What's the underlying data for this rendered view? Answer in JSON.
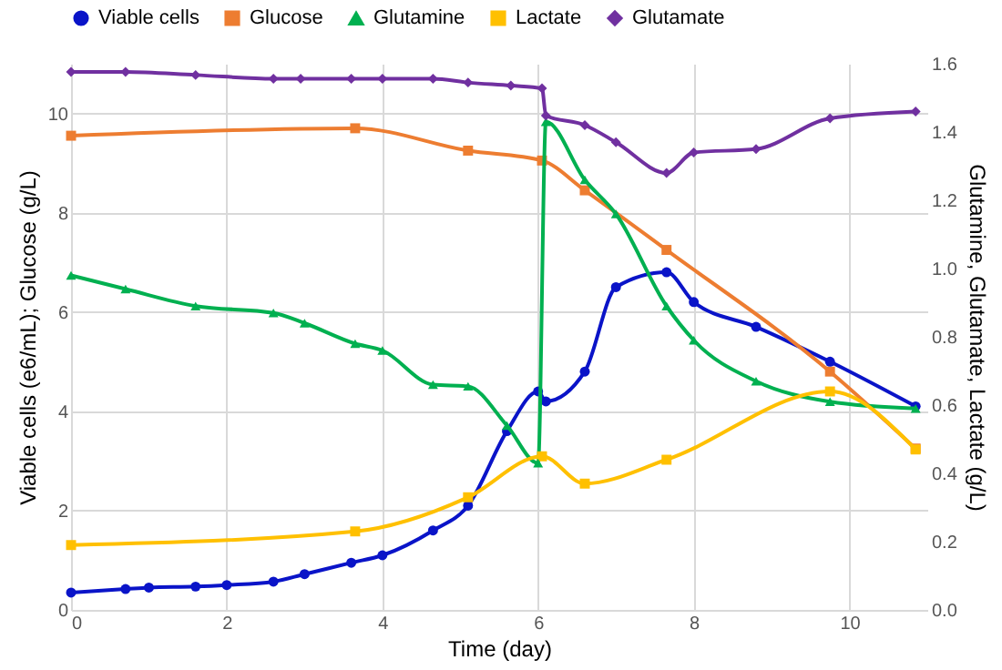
{
  "chart_data": {
    "type": "line",
    "xlabel": "Time (day)",
    "ylabel": "Viable cells (e6/mL); Glucose (g/L)",
    "y2label": "Glutamine, Glutamate, Lactate (g/L)",
    "xlim": [
      0,
      11
    ],
    "xticks": [
      0,
      2,
      4,
      6,
      8,
      10
    ],
    "ylim": [
      0,
      11
    ],
    "yticks": [
      0,
      2,
      4,
      6,
      8,
      10
    ],
    "y2lim": [
      0,
      1.6
    ],
    "y2ticks": [
      {
        "value": 0,
        "label": "0.0"
      },
      0.2,
      0.4,
      0.6,
      0.8,
      {
        "value": 1,
        "label": "1.0"
      },
      1.2,
      1.4,
      1.6
    ],
    "grid": true,
    "legend": "top",
    "series": [
      {
        "name": "Viable cells",
        "color": "#0a14c8",
        "marker": "circle",
        "x": [
          0,
          0.7,
          1.0,
          1.6,
          2.0,
          2.6,
          3.0,
          3.6,
          4.0,
          4.65,
          5.1,
          5.6,
          6.0,
          6.1,
          6.6,
          7.0,
          7.65,
          8.0,
          8.8,
          9.75,
          10.85
        ],
        "values": [
          0.35,
          0.42,
          0.45,
          0.47,
          0.5,
          0.57,
          0.72,
          0.95,
          1.1,
          1.6,
          2.1,
          3.6,
          4.4,
          4.2,
          4.8,
          6.5,
          6.8,
          6.2,
          5.7,
          5.0,
          4.1
        ]
      },
      {
        "name": "Glucose",
        "color": "#ed7d31",
        "marker": "square",
        "x": [
          0,
          3.65,
          5.1,
          6.05,
          6.6,
          7.65,
          9.75,
          10.85
        ],
        "values": [
          9.55,
          9.7,
          9.25,
          9.05,
          8.45,
          7.25,
          4.8,
          3.25
        ]
      },
      {
        "name": "Glutamine",
        "color": "#00b050",
        "marker": "triangle",
        "axis": "y2",
        "x": [
          0,
          0.7,
          1.6,
          2.6,
          3.0,
          3.65,
          4.0,
          4.65,
          5.1,
          5.6,
          6.0,
          6.1,
          6.6,
          7.0,
          7.65,
          8.0,
          8.8,
          9.75,
          10.85
        ],
        "values": [
          0.98,
          0.94,
          0.89,
          0.87,
          0.84,
          0.78,
          0.76,
          0.66,
          0.655,
          0.54,
          0.43,
          1.43,
          1.26,
          1.16,
          0.89,
          0.79,
          0.67,
          0.61,
          0.59
        ]
      },
      {
        "name": "Lactate",
        "color": "#ffc000",
        "marker": "square",
        "axis": "y2",
        "x": [
          0,
          3.65,
          5.1,
          6.05,
          6.6,
          7.65,
          9.75,
          10.85
        ],
        "values": [
          0.19,
          0.23,
          0.33,
          0.45,
          0.37,
          0.44,
          0.64,
          0.47
        ]
      },
      {
        "name": "Glutamate",
        "color": "#7030a0",
        "marker": "diamond",
        "axis": "y2",
        "x": [
          0,
          0.7,
          1.6,
          2.6,
          2.95,
          3.6,
          4.0,
          4.65,
          5.1,
          5.65,
          6.05,
          6.1,
          6.6,
          7.0,
          7.65,
          8.0,
          8.8,
          9.75,
          10.85
        ],
        "values": [
          1.576,
          1.576,
          1.567,
          1.556,
          1.556,
          1.556,
          1.556,
          1.556,
          1.545,
          1.536,
          1.528,
          1.448,
          1.42,
          1.37,
          1.28,
          1.34,
          1.35,
          1.44,
          1.46
        ]
      }
    ]
  }
}
